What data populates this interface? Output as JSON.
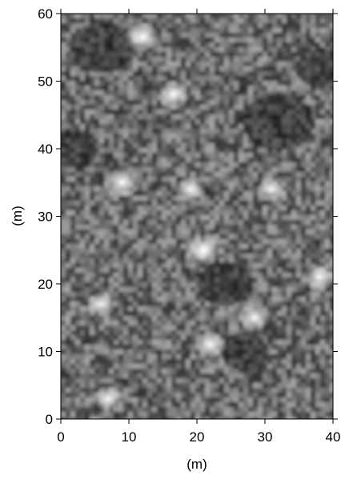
{
  "chart_data": {
    "type": "heatmap",
    "title": "",
    "xlabel": "(m)",
    "ylabel": "(m)",
    "xlim": [
      0,
      40
    ],
    "ylim": [
      0,
      60
    ],
    "x_ticks": [
      "0",
      "10",
      "20",
      "30",
      "40"
    ],
    "y_ticks": [
      "0",
      "10",
      "20",
      "30",
      "40",
      "50",
      "60"
    ],
    "colormap": "grayscale",
    "grid": false,
    "colorbar": false,
    "features": [
      {
        "x": 12,
        "y": 56.5,
        "value": 0.9
      },
      {
        "x": 16.5,
        "y": 48,
        "value": 0.85
      },
      {
        "x": 9,
        "y": 35,
        "value": 0.95
      },
      {
        "x": 19,
        "y": 34,
        "value": 0.75
      },
      {
        "x": 31,
        "y": 34,
        "value": 0.7
      },
      {
        "x": 21,
        "y": 25,
        "value": 1.0
      },
      {
        "x": 38,
        "y": 21,
        "value": 0.85
      },
      {
        "x": 28.5,
        "y": 15,
        "value": 0.8
      },
      {
        "x": 22,
        "y": 11,
        "value": 0.8
      },
      {
        "x": 7,
        "y": 3,
        "value": 0.75
      },
      {
        "x": 6,
        "y": 17,
        "value": 0.7
      }
    ]
  }
}
